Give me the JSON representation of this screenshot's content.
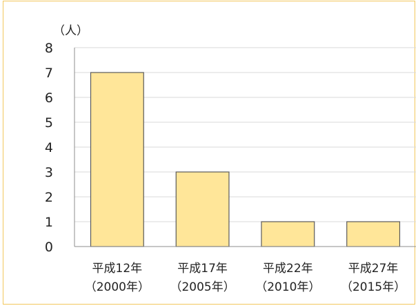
{
  "chart_data": {
    "type": "bar",
    "unit_label": "（人）",
    "categories": [
      [
        "平成12年",
        "（2000年）"
      ],
      [
        "平成17年",
        "（2005年）"
      ],
      [
        "平成22年",
        "（2010年）"
      ],
      [
        "平成27年",
        "（2015年）"
      ]
    ],
    "values": [
      7,
      3,
      1,
      1
    ],
    "y_ticks": [
      "0",
      "1",
      "2",
      "3",
      "4",
      "5",
      "6",
      "7",
      "8"
    ],
    "ylim": [
      0,
      8
    ],
    "grid": true,
    "colors": {
      "bar_fill": "#ffe699",
      "bar_stroke": "#5a5a5a",
      "grid": "#d9d9d9",
      "axis": "#8c8c8c",
      "frame": "#f2c75c"
    }
  }
}
